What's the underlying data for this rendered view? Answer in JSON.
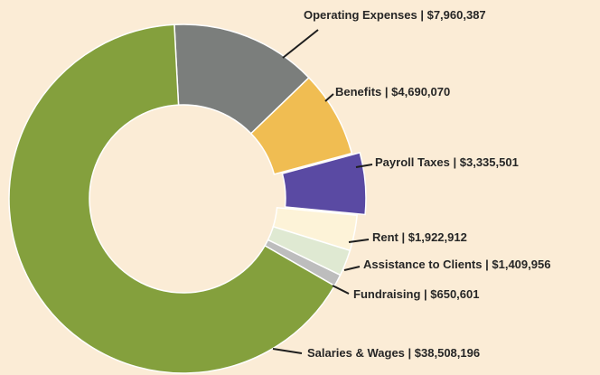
{
  "chart_data": {
    "type": "donut",
    "categories": [
      "Operating Expenses",
      "Benefits",
      "Payroll Taxes",
      "Rent",
      "Assistance to Clients",
      "Fundraising",
      "Salaries & Wages"
    ],
    "values": [
      7960387,
      4690070,
      3335501,
      1922912,
      1409956,
      650601,
      38508196
    ],
    "value_labels": [
      "$7,960,387",
      "$4,690,070",
      "$3,335,501",
      "$1,922,912",
      "$1,409,956",
      "$650,601",
      "$38,508,196"
    ],
    "label_separator": " | ",
    "colors": [
      "#7b7e7c",
      "#f0bd52",
      "#5a4aa3",
      "#fdf3d8",
      "#dfe9d2",
      "#bdbdbd",
      "#84a03d"
    ],
    "exploded": [
      false,
      false,
      true,
      false,
      false,
      false,
      false
    ]
  }
}
